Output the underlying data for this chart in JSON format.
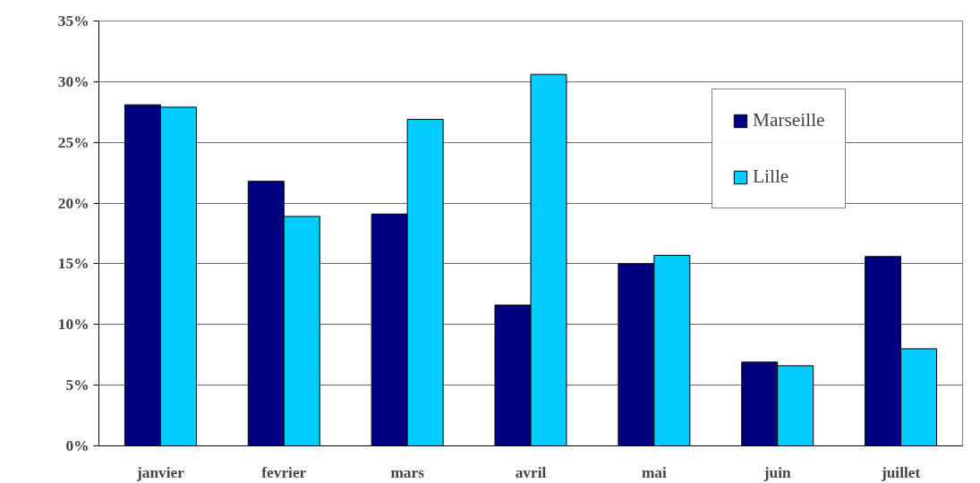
{
  "chart_data": {
    "type": "bar",
    "categories": [
      "janvier",
      "fevrier",
      "mars",
      "avril",
      "mai",
      "juin",
      "juillet"
    ],
    "series": [
      {
        "name": "Marseille",
        "color": "#000080",
        "values": [
          28.1,
          21.8,
          19.1,
          11.6,
          15.0,
          6.9,
          15.6
        ]
      },
      {
        "name": "Lille",
        "color": "#00ccff",
        "values": [
          27.9,
          18.9,
          26.9,
          30.6,
          15.7,
          6.6,
          8.0
        ]
      }
    ],
    "ylim": [
      0,
      35
    ],
    "yticks": [
      {
        "value": 0,
        "label": "0%"
      },
      {
        "value": 5,
        "label": "5%"
      },
      {
        "value": 10,
        "label": "10%"
      },
      {
        "value": 15,
        "label": "15%"
      },
      {
        "value": 20,
        "label": "20%"
      },
      {
        "value": 25,
        "label": "25%"
      },
      {
        "value": 30,
        "label": "30%"
      },
      {
        "value": 35,
        "label": "35%"
      }
    ],
    "grid": "y",
    "legend": "top right"
  }
}
